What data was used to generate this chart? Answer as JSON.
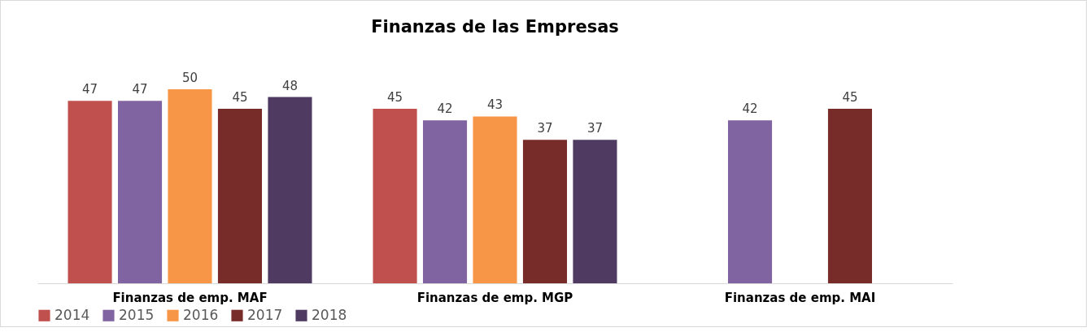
{
  "chart_data": {
    "type": "bar",
    "title": "Finanzas de las Empresas",
    "categories": [
      "Finanzas de emp. MAF",
      "Finanzas de emp. MGP",
      "Finanzas de emp. MAI"
    ],
    "series": [
      {
        "name": "2014",
        "color": "#c0504d",
        "values": [
          47,
          45,
          null
        ]
      },
      {
        "name": "2015",
        "color": "#8064a2",
        "values": [
          47,
          42,
          42
        ]
      },
      {
        "name": "2016",
        "color": "#f79646",
        "values": [
          50,
          43,
          null
        ]
      },
      {
        "name": "2017",
        "color": "#772c2a",
        "values": [
          45,
          37,
          45
        ]
      },
      {
        "name": "2018",
        "color": "#4f3b62",
        "values": [
          48,
          37,
          null
        ]
      }
    ],
    "data_labels": true,
    "grid": false,
    "legend": "bottom"
  }
}
